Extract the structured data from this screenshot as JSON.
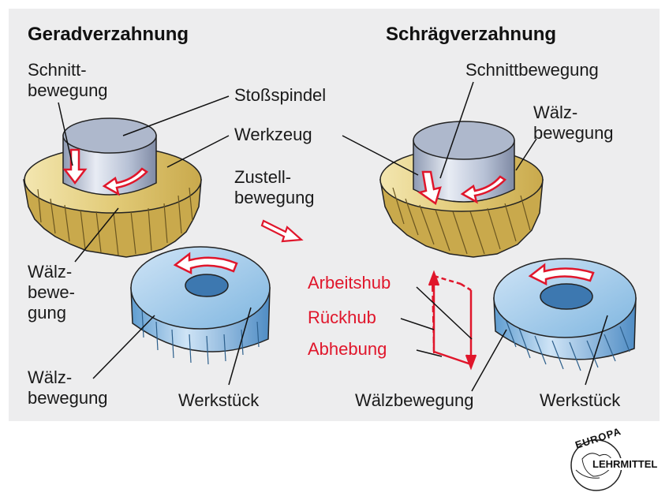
{
  "headings": {
    "left": "Geradverzahnung",
    "right": "Schrägverzahnung"
  },
  "labels": {
    "schnitt_left": "Schnitt-\nbewegung",
    "stossspindel": "Stoßspindel",
    "werkzeug": "Werkzeug",
    "zustell": "Zustell-\nbewegung",
    "waelz_left_top": "Wälz-\nbewe-\ngung",
    "waelz_left_bottom": "Wälz-\nbewegung",
    "werkstueck_left": "Werkstück",
    "schnitt_right": "Schnittbewegung",
    "waelz_right_top": "Wälz-\nbewegung",
    "arbeitshub": "Arbeitshub",
    "rueckhub": "Rückhub",
    "abhebung": "Abhebung",
    "waelz_right_bottom": "Wälzbewegung",
    "werkstueck_right": "Werkstück"
  },
  "logo": {
    "top": "EUROPA",
    "bottom": "LEHRMITTEL"
  },
  "colors": {
    "panel": "#ededee",
    "red_text": "#e0162b",
    "gear_gold": "#e8d58a",
    "spindle": "#a9b4c8",
    "workpiece": "#7fb6e0"
  }
}
